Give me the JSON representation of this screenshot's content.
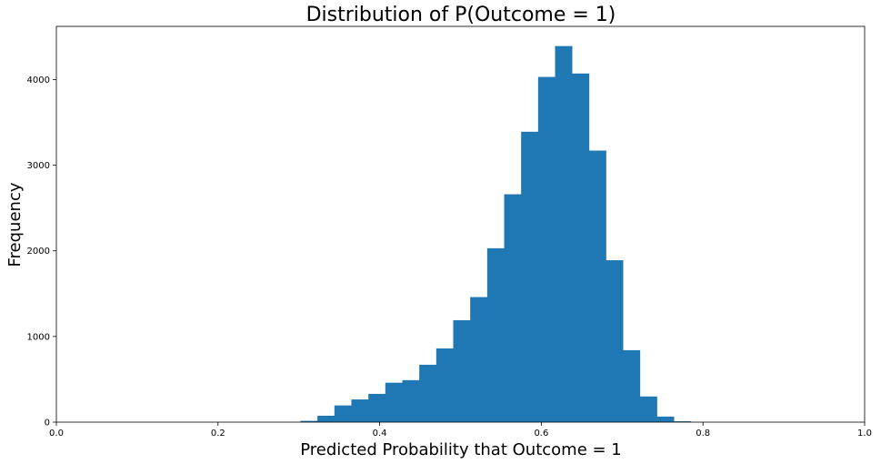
{
  "chart_data": {
    "type": "bar",
    "title": "Distribution of P(Outcome = 1)",
    "xlabel": "Predicted Probability that Outcome = 1",
    "ylabel": "Frequency",
    "xlim": [
      0.0,
      1.0
    ],
    "ylim": [
      0,
      4620
    ],
    "xticks": [
      "0.0",
      "0.2",
      "0.4",
      "0.6",
      "0.8",
      "1.0"
    ],
    "xtick_values": [
      0.0,
      0.2,
      0.4,
      0.6,
      0.8,
      1.0
    ],
    "yticks": [
      "0",
      "1000",
      "2000",
      "3000",
      "4000"
    ],
    "ytick_values": [
      0,
      1000,
      2000,
      3000,
      4000
    ],
    "bar_color": "#1f77b4",
    "bin_width": 0.021,
    "bin_starts": [
      0.302,
      0.323,
      0.344,
      0.365,
      0.386,
      0.407,
      0.428,
      0.449,
      0.47,
      0.491,
      0.512,
      0.533,
      0.554,
      0.575,
      0.596,
      0.617,
      0.638,
      0.659,
      0.68,
      0.701,
      0.722,
      0.743,
      0.764
    ],
    "values": [
      15,
      75,
      195,
      265,
      330,
      460,
      490,
      670,
      860,
      1190,
      1460,
      2030,
      2660,
      3390,
      4030,
      4390,
      4070,
      3170,
      1890,
      840,
      300,
      65,
      10
    ]
  }
}
